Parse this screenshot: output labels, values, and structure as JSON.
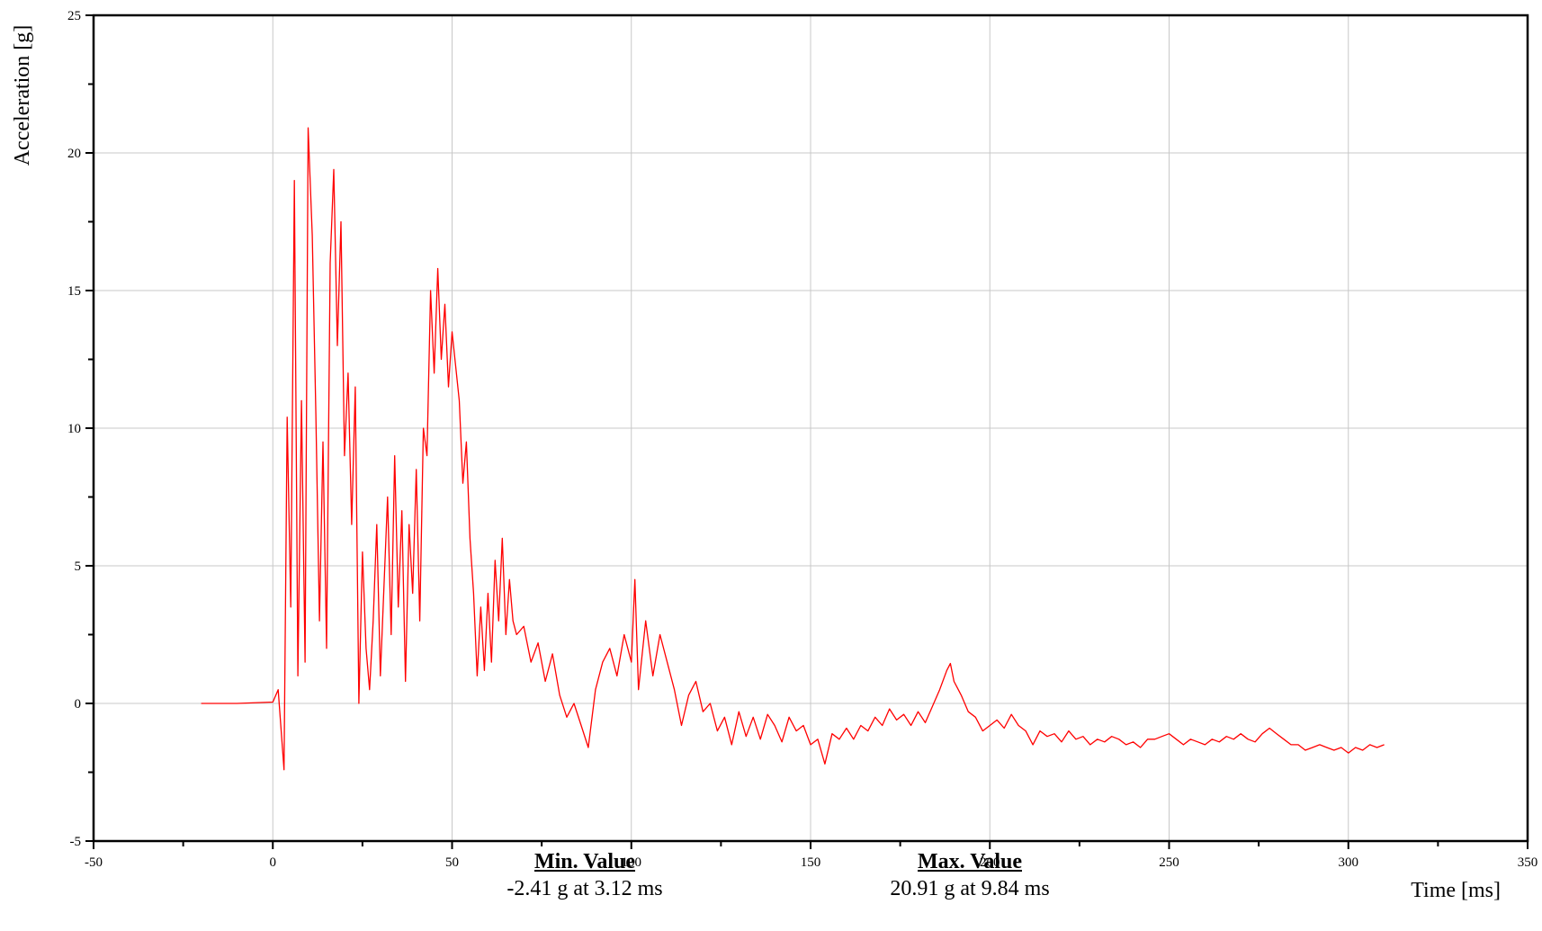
{
  "chart_data": {
    "type": "line",
    "xlabel": "Time [ms]",
    "ylabel": "Acceleration [g]",
    "xlim": [
      -50,
      350
    ],
    "ylim": [
      -5,
      25
    ],
    "x_ticks": [
      -50,
      0,
      50,
      100,
      150,
      200,
      250,
      300,
      350
    ],
    "y_ticks": [
      -5,
      0,
      5,
      10,
      15,
      20,
      25
    ],
    "grid": true,
    "series": [
      {
        "color": "#ff0000",
        "points": [
          [
            -20,
            0.0
          ],
          [
            -10,
            0.0
          ],
          [
            0,
            0.05
          ],
          [
            1.5,
            0.5
          ],
          [
            3.12,
            -2.41
          ],
          [
            4,
            10.4
          ],
          [
            5,
            3.5
          ],
          [
            6,
            19.0
          ],
          [
            7,
            1.0
          ],
          [
            8,
            11.0
          ],
          [
            9,
            1.5
          ],
          [
            9.84,
            20.91
          ],
          [
            11,
            17.0
          ],
          [
            12,
            10.5
          ],
          [
            13,
            3.0
          ],
          [
            14,
            9.5
          ],
          [
            15,
            2.0
          ],
          [
            16,
            16.0
          ],
          [
            17,
            19.4
          ],
          [
            18,
            13.0
          ],
          [
            19,
            17.5
          ],
          [
            20,
            9.0
          ],
          [
            21,
            12.0
          ],
          [
            22,
            6.5
          ],
          [
            23,
            11.5
          ],
          [
            24,
            0.0
          ],
          [
            25,
            5.5
          ],
          [
            26,
            2.0
          ],
          [
            27,
            0.5
          ],
          [
            28,
            3.0
          ],
          [
            29,
            6.5
          ],
          [
            30,
            1.0
          ],
          [
            32,
            7.5
          ],
          [
            33,
            2.5
          ],
          [
            34,
            9.0
          ],
          [
            35,
            3.5
          ],
          [
            36,
            7.0
          ],
          [
            37,
            0.8
          ],
          [
            38,
            6.5
          ],
          [
            39,
            4.0
          ],
          [
            40,
            8.5
          ],
          [
            41,
            3.0
          ],
          [
            42,
            10.0
          ],
          [
            43,
            9.0
          ],
          [
            44,
            15.0
          ],
          [
            45,
            12.0
          ],
          [
            46,
            15.8
          ],
          [
            47,
            12.5
          ],
          [
            48,
            14.5
          ],
          [
            49,
            11.5
          ],
          [
            50,
            13.5
          ],
          [
            52,
            11.0
          ],
          [
            53,
            8.0
          ],
          [
            54,
            9.5
          ],
          [
            55,
            6.0
          ],
          [
            56,
            4.0
          ],
          [
            57,
            1.0
          ],
          [
            58,
            3.5
          ],
          [
            59,
            1.2
          ],
          [
            60,
            4.0
          ],
          [
            61,
            1.5
          ],
          [
            62,
            5.2
          ],
          [
            63,
            3.0
          ],
          [
            64,
            6.0
          ],
          [
            65,
            2.5
          ],
          [
            66,
            4.5
          ],
          [
            67,
            3.0
          ],
          [
            68,
            2.5
          ],
          [
            70,
            2.8
          ],
          [
            72,
            1.5
          ],
          [
            74,
            2.2
          ],
          [
            76,
            0.8
          ],
          [
            78,
            1.8
          ],
          [
            80,
            0.3
          ],
          [
            82,
            -0.5
          ],
          [
            84,
            0.0
          ],
          [
            86,
            -0.8
          ],
          [
            88,
            -1.6
          ],
          [
            90,
            0.5
          ],
          [
            92,
            1.5
          ],
          [
            94,
            2.0
          ],
          [
            96,
            1.0
          ],
          [
            98,
            2.5
          ],
          [
            100,
            1.5
          ],
          [
            101,
            4.5
          ],
          [
            102,
            0.5
          ],
          [
            104,
            3.0
          ],
          [
            106,
            1.0
          ],
          [
            108,
            2.5
          ],
          [
            110,
            1.5
          ],
          [
            112,
            0.5
          ],
          [
            114,
            -0.8
          ],
          [
            116,
            0.3
          ],
          [
            118,
            0.8
          ],
          [
            120,
            -0.3
          ],
          [
            122,
            0.0
          ],
          [
            124,
            -1.0
          ],
          [
            126,
            -0.5
          ],
          [
            128,
            -1.5
          ],
          [
            130,
            -0.3
          ],
          [
            132,
            -1.2
          ],
          [
            134,
            -0.5
          ],
          [
            136,
            -1.3
          ],
          [
            138,
            -0.4
          ],
          [
            140,
            -0.8
          ],
          [
            142,
            -1.4
          ],
          [
            144,
            -0.5
          ],
          [
            146,
            -1.0
          ],
          [
            148,
            -0.8
          ],
          [
            150,
            -1.5
          ],
          [
            152,
            -1.3
          ],
          [
            154,
            -2.2
          ],
          [
            156,
            -1.1
          ],
          [
            158,
            -1.3
          ],
          [
            160,
            -0.9
          ],
          [
            162,
            -1.3
          ],
          [
            164,
            -0.8
          ],
          [
            166,
            -1.0
          ],
          [
            168,
            -0.5
          ],
          [
            170,
            -0.8
          ],
          [
            172,
            -0.2
          ],
          [
            174,
            -0.6
          ],
          [
            176,
            -0.4
          ],
          [
            178,
            -0.8
          ],
          [
            180,
            -0.3
          ],
          [
            182,
            -0.7
          ],
          [
            184,
            -0.1
          ],
          [
            186,
            0.5
          ],
          [
            188,
            1.2
          ],
          [
            189,
            1.45
          ],
          [
            190,
            0.8
          ],
          [
            192,
            0.3
          ],
          [
            194,
            -0.3
          ],
          [
            196,
            -0.5
          ],
          [
            198,
            -1.0
          ],
          [
            200,
            -0.8
          ],
          [
            202,
            -0.6
          ],
          [
            204,
            -0.9
          ],
          [
            206,
            -0.4
          ],
          [
            208,
            -0.8
          ],
          [
            210,
            -1.0
          ],
          [
            212,
            -1.5
          ],
          [
            214,
            -1.0
          ],
          [
            216,
            -1.2
          ],
          [
            218,
            -1.1
          ],
          [
            220,
            -1.4
          ],
          [
            222,
            -1.0
          ],
          [
            224,
            -1.3
          ],
          [
            226,
            -1.2
          ],
          [
            228,
            -1.5
          ],
          [
            230,
            -1.3
          ],
          [
            232,
            -1.4
          ],
          [
            234,
            -1.2
          ],
          [
            236,
            -1.3
          ],
          [
            238,
            -1.5
          ],
          [
            240,
            -1.4
          ],
          [
            242,
            -1.6
          ],
          [
            244,
            -1.3
          ],
          [
            246,
            -1.3
          ],
          [
            248,
            -1.2
          ],
          [
            250,
            -1.1
          ],
          [
            252,
            -1.3
          ],
          [
            254,
            -1.5
          ],
          [
            256,
            -1.3
          ],
          [
            258,
            -1.4
          ],
          [
            260,
            -1.5
          ],
          [
            262,
            -1.3
          ],
          [
            264,
            -1.4
          ],
          [
            266,
            -1.2
          ],
          [
            268,
            -1.3
          ],
          [
            270,
            -1.1
          ],
          [
            272,
            -1.3
          ],
          [
            274,
            -1.4
          ],
          [
            276,
            -1.1
          ],
          [
            278,
            -0.9
          ],
          [
            280,
            -1.1
          ],
          [
            282,
            -1.3
          ],
          [
            284,
            -1.5
          ],
          [
            286,
            -1.5
          ],
          [
            288,
            -1.7
          ],
          [
            290,
            -1.6
          ],
          [
            292,
            -1.5
          ],
          [
            294,
            -1.6
          ],
          [
            296,
            -1.7
          ],
          [
            298,
            -1.6
          ],
          [
            300,
            -1.8
          ],
          [
            302,
            -1.6
          ],
          [
            304,
            -1.7
          ],
          [
            306,
            -1.5
          ],
          [
            308,
            -1.6
          ],
          [
            310,
            -1.5
          ]
        ]
      }
    ],
    "annotations": {
      "min": {
        "title": "Min. Value",
        "text": "-2.41 g at 3.12 ms"
      },
      "max": {
        "title": "Max. Value",
        "text": "20.91 g at 9.84 ms"
      }
    }
  }
}
